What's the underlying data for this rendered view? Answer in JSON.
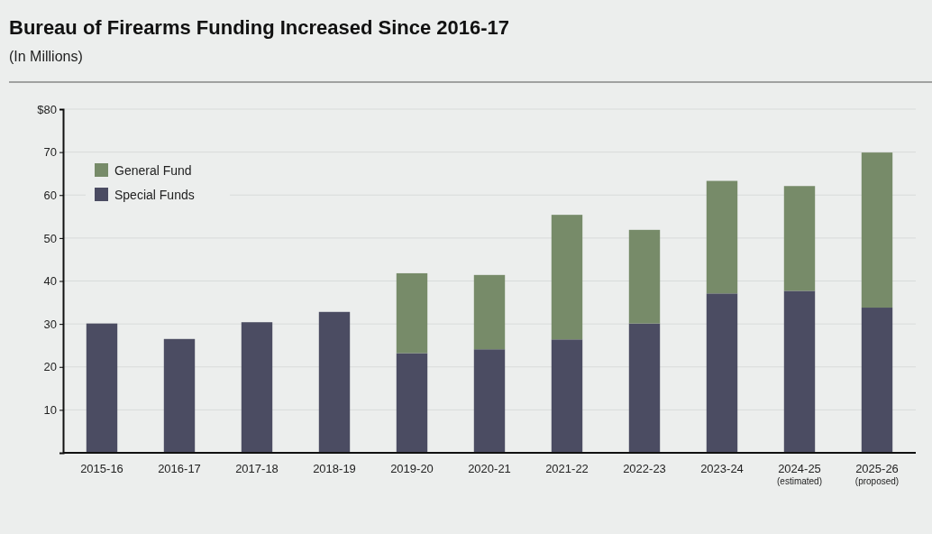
{
  "chart_data": {
    "type": "bar",
    "title": "Bureau of Firearms Funding Increased Since 2016-17",
    "subtitle": "(In Millions)",
    "categories": [
      "2015-16",
      "2016-17",
      "2017-18",
      "2018-19",
      "2019-20",
      "2020-21",
      "2021-22",
      "2022-23",
      "2023-24",
      "2024-25\n(estimated)",
      "2025-26\n(proposed)"
    ],
    "series": [
      {
        "name": "Special Funds",
        "color": "#4b4c62",
        "values": [
          30.1,
          26.5,
          30.4,
          32.8,
          23.2,
          24.1,
          26.4,
          30.1,
          37.1,
          37.7,
          33.8
        ]
      },
      {
        "name": "General Fund",
        "color": "#778b69",
        "values": [
          null,
          null,
          null,
          null,
          18.6,
          17.3,
          29.0,
          21.8,
          26.2,
          24.4,
          36.1
        ]
      }
    ],
    "stacked": true,
    "ylim": [
      0,
      80
    ],
    "yticks": [
      10,
      20,
      30,
      40,
      50,
      60,
      70,
      {
        "value": 80,
        "label": "$80"
      }
    ],
    "grid": "y",
    "legend": "top left"
  }
}
